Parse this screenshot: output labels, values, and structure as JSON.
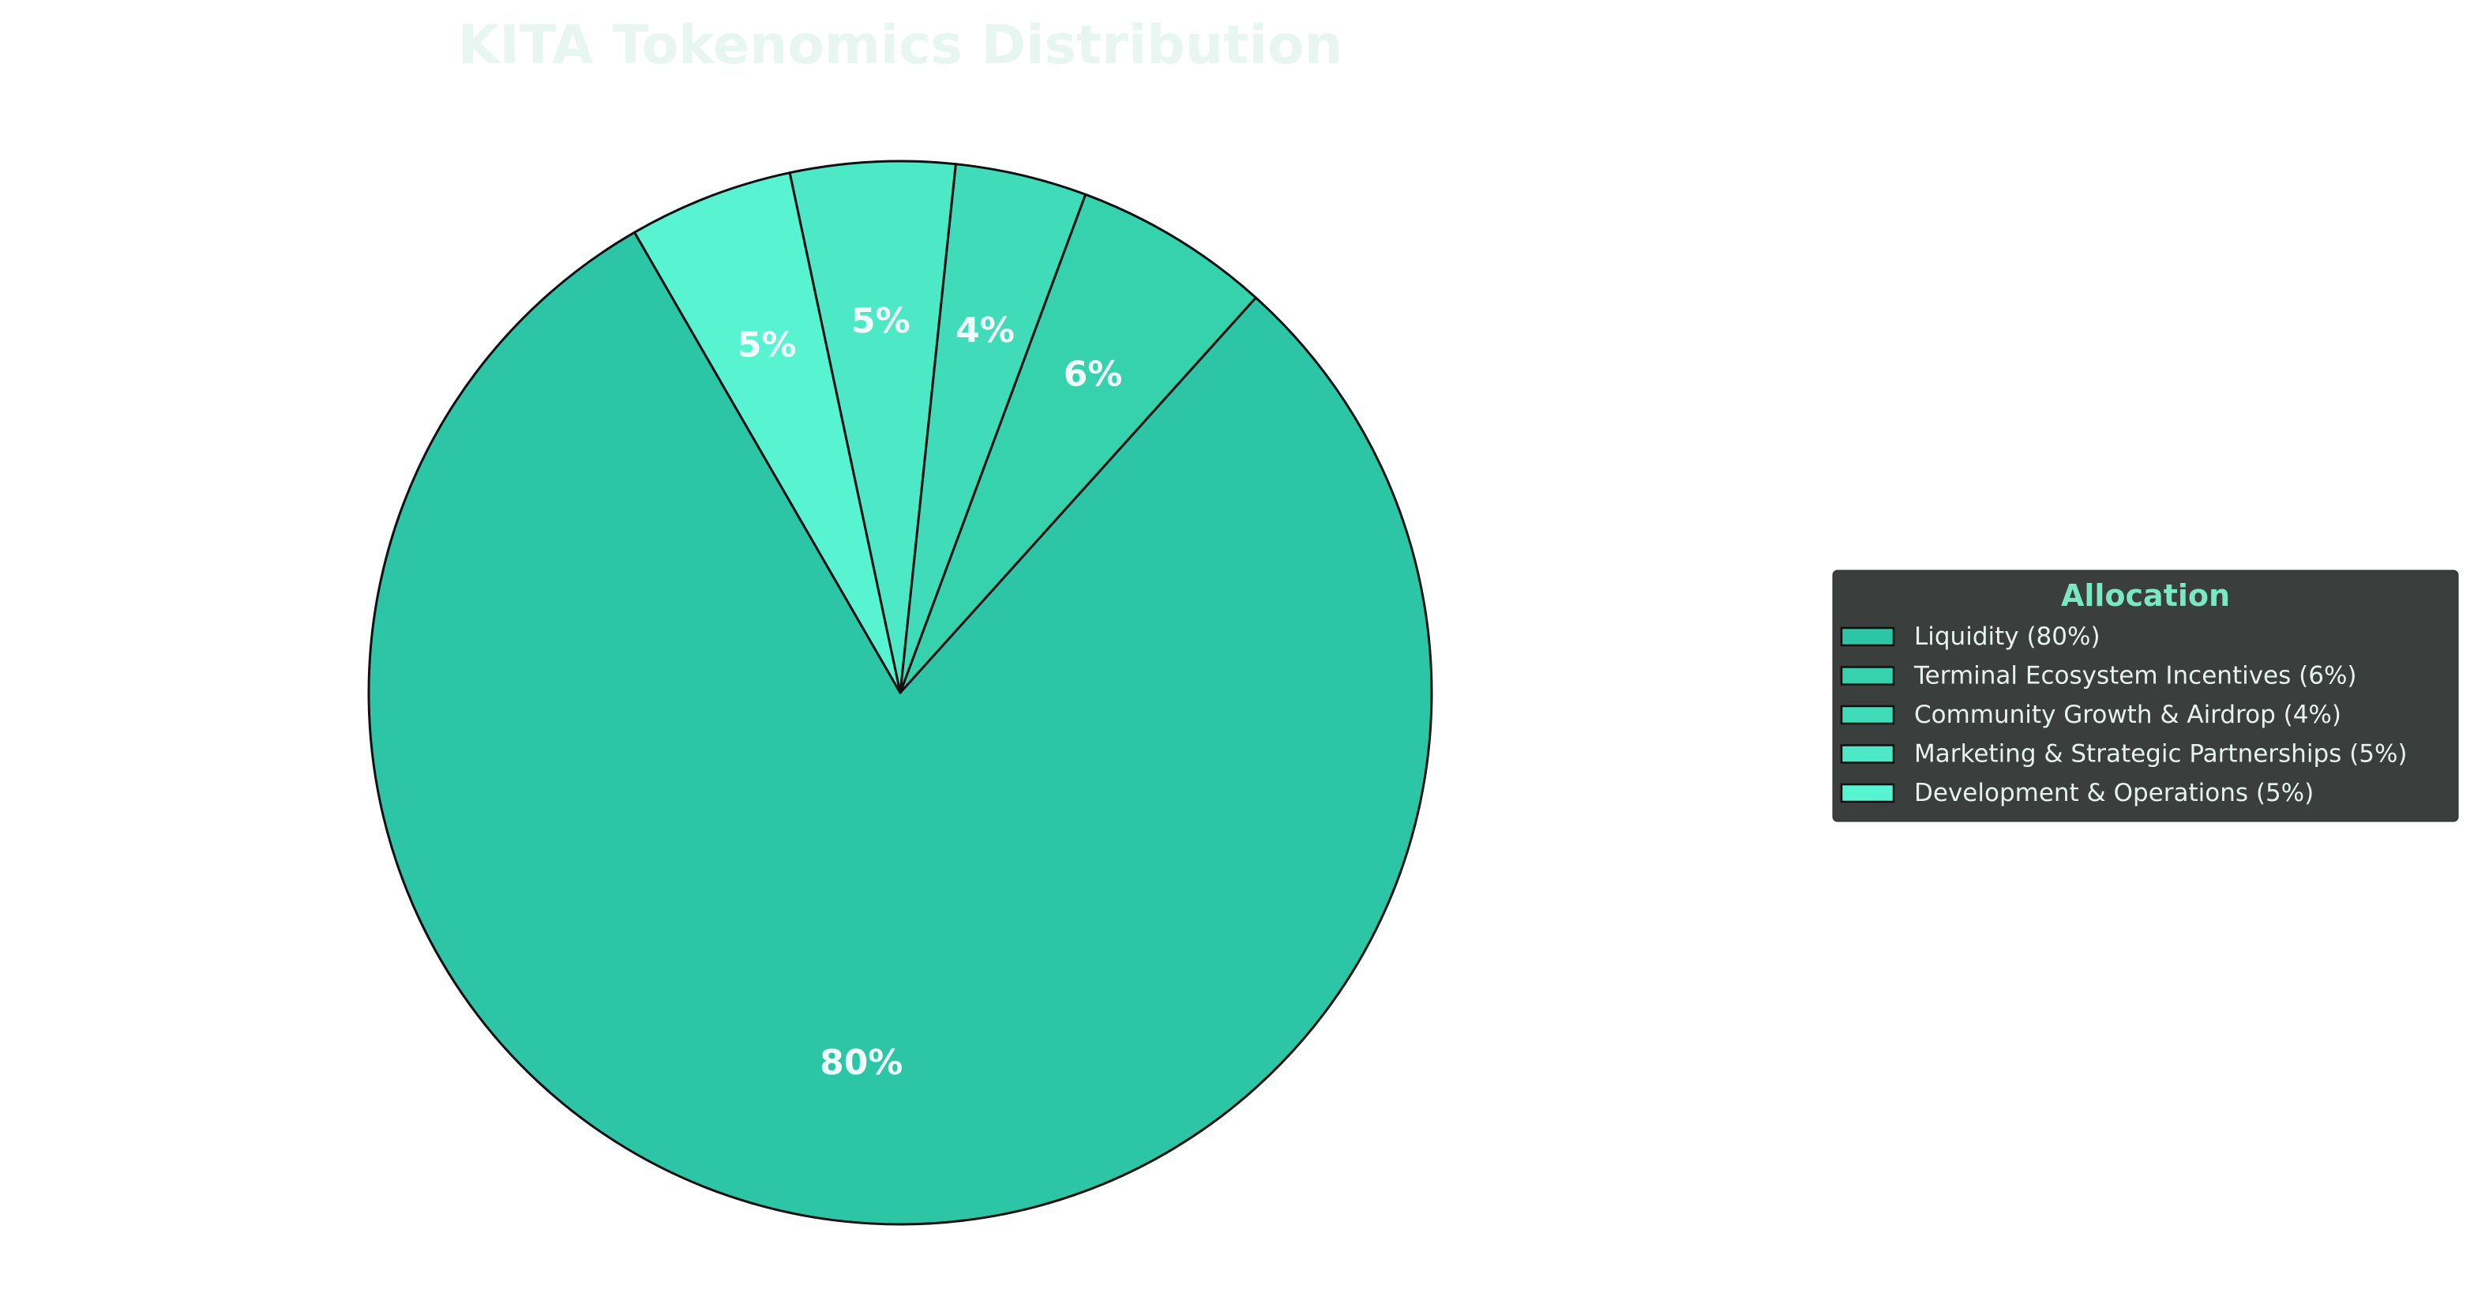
{
  "chart_data": {
    "type": "pie",
    "title": "KITA Tokenomics Distribution",
    "start_angle_deg": 120,
    "direction": "counterclockwise",
    "slices": [
      {
        "label": "Liquidity (80%)",
        "value": 80,
        "display": "80%",
        "color": "#2cc6a6"
      },
      {
        "label": "Terminal Ecosystem Incentives (6%)",
        "value": 6,
        "display": "6%",
        "color": "#35d2ad"
      },
      {
        "label": "Community Growth & Airdrop (4%)",
        "value": 4,
        "display": "4%",
        "color": "#40dcb9"
      },
      {
        "label": "Marketing & Strategic Partnerships (5%)",
        "value": 5,
        "display": "5%",
        "color": "#4de8c6"
      },
      {
        "label": "Development & Operations (5%)",
        "value": 5,
        "display": "5%",
        "color": "#58f3d0"
      }
    ],
    "legend": {
      "title": "Allocation",
      "placement": "right"
    }
  },
  "colors": {
    "title": "#e8f6f1",
    "slice_label": "#f0fffa",
    "edge": "#111111",
    "legend_bg": "#3a3e3c",
    "legend_title": "#7be8c4",
    "legend_text": "#e6f2ee"
  }
}
